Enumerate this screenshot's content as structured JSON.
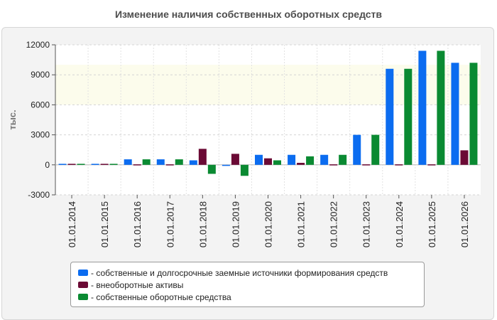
{
  "chart_data": {
    "type": "bar",
    "title": "Изменение наличия собственных оборотных средств",
    "ylabel": "тыс.",
    "xlabel": "",
    "ylim": [
      -3000,
      12000
    ],
    "yticks": [
      -3000,
      0,
      3000,
      6000,
      9000,
      12000
    ],
    "grid": true,
    "legend_position": "bottom",
    "categories": [
      "01.01.2014",
      "01.01.2015",
      "01.01.2016",
      "01.01.2017",
      "01.01.2018",
      "01.01.2019",
      "01.01.2020",
      "01.01.2021",
      "01.01.2022",
      "01.01.2023",
      "01.01.2024",
      "01.01.2025",
      "01.01.2026"
    ],
    "series": [
      {
        "name": "- собственные и долгосрочные заемные источники формирования средств",
        "color": "#0b6cf0",
        "values": [
          100,
          100,
          550,
          550,
          450,
          -100,
          1000,
          1000,
          1000,
          3000,
          9600,
          11400,
          10200
        ]
      },
      {
        "name": "- внеоборотные активы",
        "color": "#6b0a35",
        "values": [
          100,
          100,
          50,
          50,
          1600,
          1100,
          650,
          200,
          50,
          50,
          50,
          50,
          1450
        ]
      },
      {
        "name": "- собственные оборотные средства",
        "color": "#0a8a32",
        "values": [
          100,
          100,
          550,
          550,
          -900,
          -1100,
          450,
          850,
          1000,
          3000,
          9600,
          11400,
          10200
        ]
      }
    ]
  }
}
